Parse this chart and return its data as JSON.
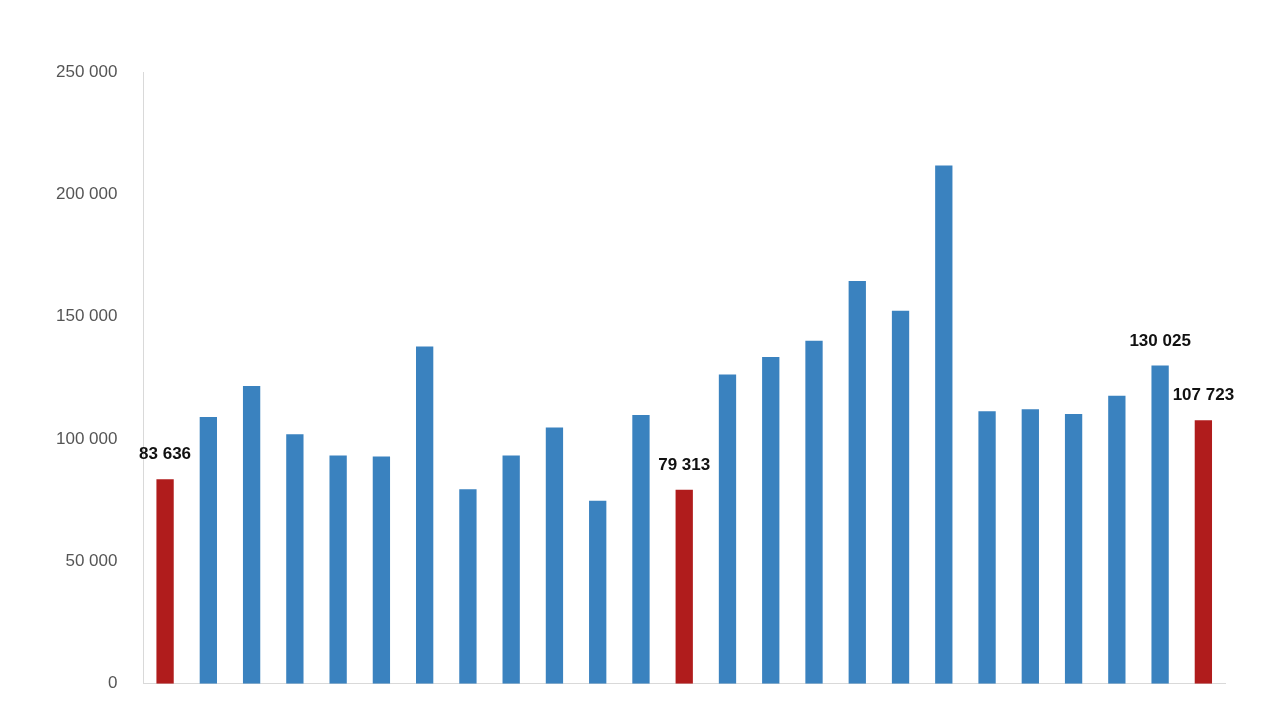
{
  "chart_data": {
    "type": "bar",
    "categories": [
      null,
      null,
      null,
      null,
      null,
      null,
      null,
      null,
      null,
      null,
      null,
      null,
      null,
      null,
      null,
      null,
      null,
      null,
      null,
      null,
      null,
      null,
      null,
      null,
      null
    ],
    "values": [
      83636,
      109000,
      121700,
      102000,
      93300,
      92900,
      137800,
      79500,
      93300,
      104700,
      74800,
      109800,
      79313,
      126400,
      133500,
      140200,
      164600,
      152400,
      211800,
      111400,
      112200,
      110200,
      117700,
      130025,
      107723
    ],
    "colors": [
      "#b01c1c",
      "#3a82bf",
      "#3a82bf",
      "#3a82bf",
      "#3a82bf",
      "#3a82bf",
      "#3a82bf",
      "#3a82bf",
      "#3a82bf",
      "#3a82bf",
      "#3a82bf",
      "#3a82bf",
      "#b01c1c",
      "#3a82bf",
      "#3a82bf",
      "#3a82bf",
      "#3a82bf",
      "#3a82bf",
      "#3a82bf",
      "#3a82bf",
      "#3a82bf",
      "#3a82bf",
      "#3a82bf",
      "#3a82bf",
      "#b01c1c"
    ],
    "value_labels": [
      "83 636",
      null,
      null,
      null,
      null,
      null,
      null,
      null,
      null,
      null,
      null,
      null,
      "79 313",
      null,
      null,
      null,
      null,
      null,
      null,
      null,
      null,
      null,
      null,
      "130 025",
      "107 723"
    ],
    "ylim": [
      0,
      250000
    ],
    "yticks": [
      {
        "value": 0,
        "label": "0"
      },
      {
        "value": 50000,
        "label": "50 000"
      },
      {
        "value": 100000,
        "label": "100 000"
      },
      {
        "value": 150000,
        "label": "150 000"
      },
      {
        "value": 200000,
        "label": "200 000"
      },
      {
        "value": 250000,
        "label": "250 000"
      }
    ],
    "tick_labels": "y",
    "grid": false,
    "legend": false
  }
}
